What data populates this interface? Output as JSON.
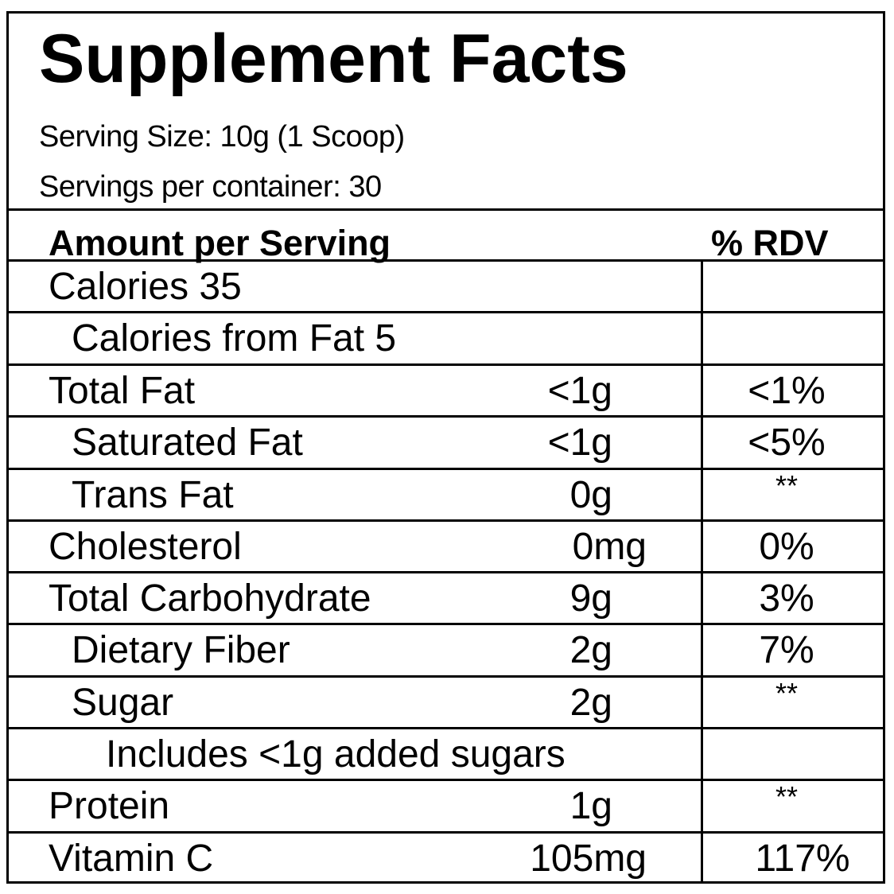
{
  "title": "Supplement Facts",
  "serving_size": "Serving Size: 10g (1 Scoop)",
  "servings_per_container": "Servings per container: 30",
  "header": {
    "amount": "Amount per Serving",
    "rdv": "% RDV"
  },
  "rows": [
    {
      "name": "Calories 35",
      "amount": "",
      "rdv": ""
    },
    {
      "name": "Calories from Fat 5",
      "amount": "",
      "rdv": ""
    },
    {
      "name": "Total Fat",
      "amount": "<1g",
      "rdv": "<1%"
    },
    {
      "name": "Saturated Fat",
      "amount": "<1g",
      "rdv": "<5%"
    },
    {
      "name": "Trans Fat",
      "amount": "0g",
      "rdv": "**"
    },
    {
      "name": "Cholesterol",
      "amount": "0mg",
      "rdv": "0%"
    },
    {
      "name": "Total Carbohydrate",
      "amount": "9g",
      "rdv": "3%"
    },
    {
      "name": "Dietary Fiber",
      "amount": "2g",
      "rdv": "7%"
    },
    {
      "name": "Sugar",
      "amount": "2g",
      "rdv": "**"
    },
    {
      "name": "Includes <1g added sugars",
      "amount": "",
      "rdv": ""
    },
    {
      "name": "Protein",
      "amount": "1g",
      "rdv": "**"
    },
    {
      "name": "Vitamin C",
      "amount": "105mg",
      "rdv": "117%"
    }
  ]
}
